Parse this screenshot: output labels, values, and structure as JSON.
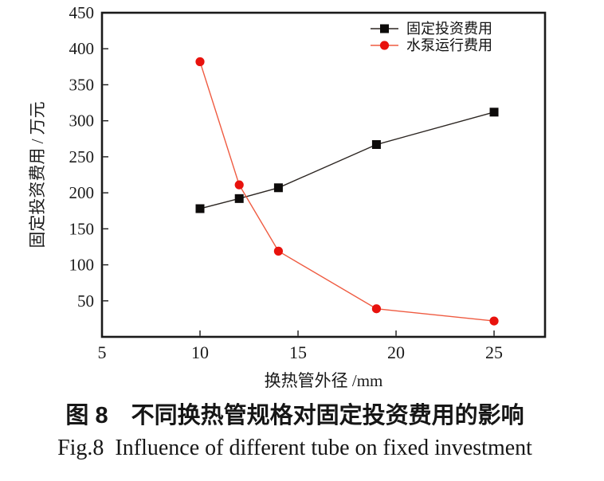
{
  "figure": {
    "caption_zh": "图 8　不同换热管规格对固定投资费用的影响",
    "caption_en": "Fig.8  Influence of different tube on fixed investment"
  },
  "chart_data": {
    "type": "line",
    "title": "",
    "x": [
      10,
      12,
      14,
      19,
      25
    ],
    "series": [
      {
        "name": "固定投资费用",
        "values": [
          178,
          192,
          207,
          267,
          312
        ],
        "line_color": "#2b2521",
        "marker": "square",
        "marker_color": "#0d0b0a"
      },
      {
        "name": "水泵运行费用",
        "values": [
          382,
          211,
          119,
          39,
          22
        ],
        "line_color": "#ef5b41",
        "marker": "circle",
        "marker_color": "#e8120d"
      }
    ],
    "xlabel": "换热管外径 /mm",
    "ylabel": "固定投资费用 / 万元",
    "xlim": [
      5,
      27.6
    ],
    "ylim": [
      0,
      450
    ],
    "xticks": [
      5,
      10,
      15,
      20,
      25
    ],
    "yticks": [
      50,
      100,
      150,
      200,
      250,
      300,
      350,
      400,
      450
    ],
    "legend": {
      "position": "top-right",
      "frame": false
    },
    "grid": false,
    "axis_color": "#1a1a1a",
    "background": "#ffffff"
  }
}
